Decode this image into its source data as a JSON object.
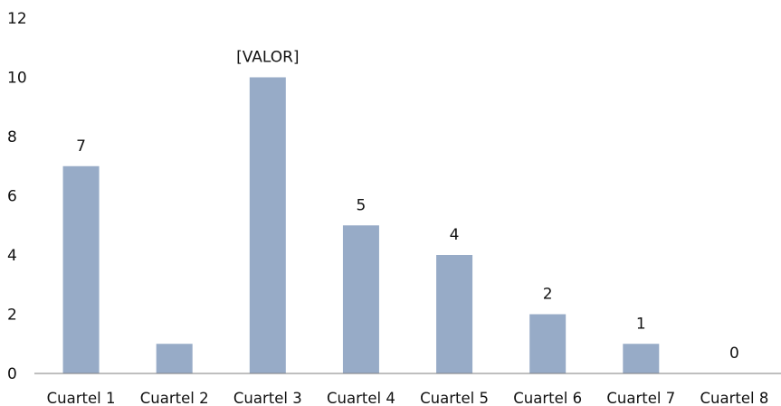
{
  "chart_data": {
    "type": "bar",
    "categories": [
      "Cuartel 1",
      "Cuartel 2",
      "Cuartel 3",
      "Cuartel 4",
      "Cuartel 5",
      "Cuartel 6",
      "Cuartel 7",
      "Cuartel 8"
    ],
    "values": [
      7,
      1,
      10,
      5,
      4,
      2,
      1,
      0
    ],
    "data_labels": [
      "7",
      "",
      "[VALOR]",
      "5",
      "4",
      "2",
      "1",
      "0"
    ],
    "yticks": [
      "0",
      "2",
      "4",
      "6",
      "8",
      "10",
      "12"
    ],
    "ylim": [
      0,
      12
    ],
    "grid": false,
    "legend": "none",
    "bar_color": "#97abc7",
    "axis_color": "#7f7f7f"
  }
}
